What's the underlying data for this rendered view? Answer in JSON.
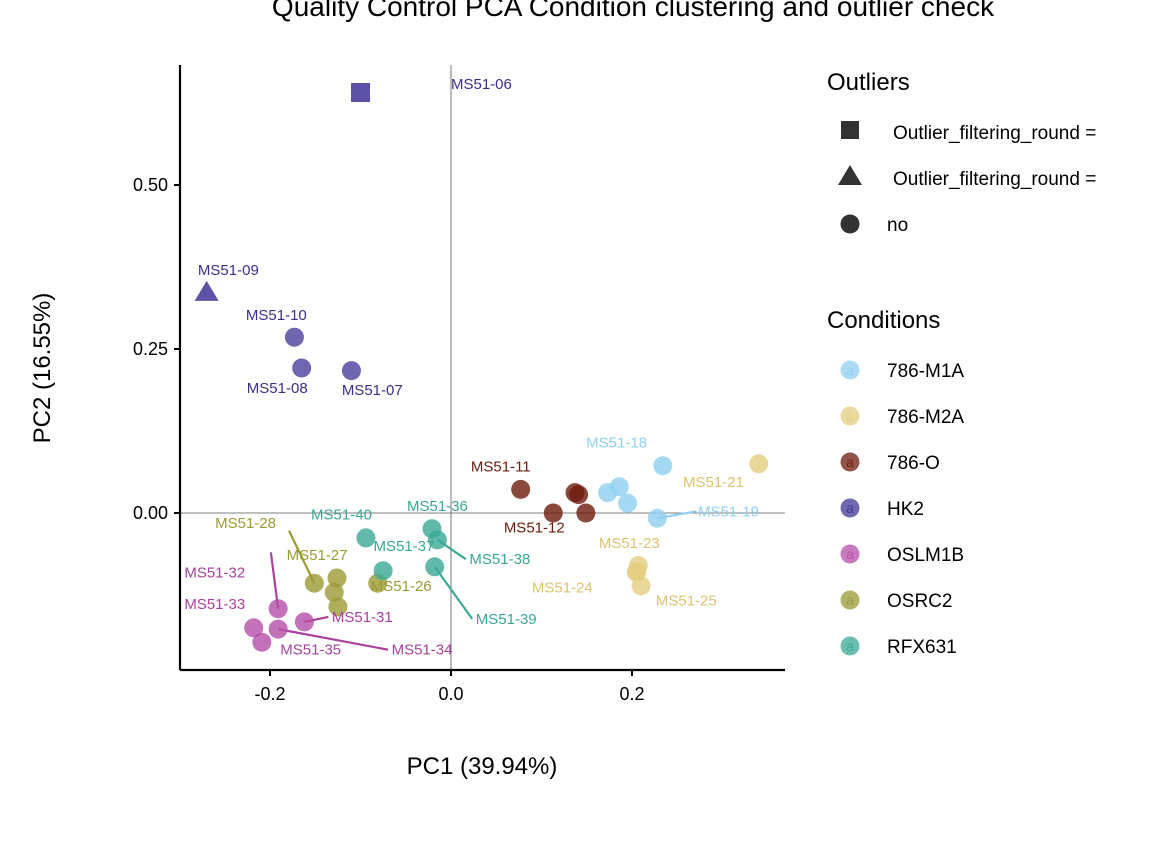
{
  "chart_data": {
    "type": "scatter",
    "title": "Quality Control PCA Condition clustering and outlier check",
    "xlabel": "PC1 (39.94%)",
    "ylabel": "PC2 (16.55%)",
    "xlim": [
      -0.3,
      0.37
    ],
    "ylim": [
      -0.24,
      0.68
    ],
    "xticks": [
      -0.2,
      0.0,
      0.2
    ],
    "xtick_labels": [
      "-0.2",
      "0.0",
      "0.2"
    ],
    "yticks": [
      0.0,
      0.25,
      0.5
    ],
    "ytick_labels": [
      "0.00",
      "0.25",
      "0.50"
    ],
    "reference_lines": {
      "x": 0,
      "y": 0
    },
    "grid": false,
    "legend_placement": "right",
    "legends": [
      {
        "title": "Outliers",
        "items": [
          {
            "label": "Outlier_filtering_round = ",
            "shape": "square"
          },
          {
            "label": "Outlier_filtering_round = ",
            "shape": "triangle"
          },
          {
            "label": "no",
            "shape": "circle"
          }
        ]
      },
      {
        "title": "Conditions",
        "items": [
          {
            "label": "786-M1A",
            "color": "#8fd0f0"
          },
          {
            "label": "786-M2A",
            "color": "#e3cd80"
          },
          {
            "label": "786-O",
            "color": "#6e1a0c"
          },
          {
            "label": "HK2",
            "color": "#3f3594"
          },
          {
            "label": "OSLM1B",
            "color": "#b44ea8"
          },
          {
            "label": "OSRC2",
            "color": "#9a9a35"
          },
          {
            "label": "RFX631",
            "color": "#3aa895"
          }
        ]
      }
    ],
    "series": [
      {
        "name": "HK2",
        "color": "#4b3f9e",
        "label_color": "#3a2f8a",
        "points": [
          {
            "id": "MS51-06",
            "x": -0.1,
            "y": 0.641,
            "shape": "square",
            "lx": 0.0,
            "ly": 0.646,
            "anchor": "start",
            "leader": false
          },
          {
            "id": "MS51-07",
            "x": -0.11,
            "y": 0.217,
            "shape": "circle",
            "lx": -0.087,
            "ly": 0.18,
            "anchor": "middle",
            "leader": false
          },
          {
            "id": "MS51-08",
            "x": -0.165,
            "y": 0.221,
            "shape": "circle",
            "lx": -0.192,
            "ly": 0.183,
            "anchor": "middle",
            "leader": false
          },
          {
            "id": "MS51-09",
            "x": -0.27,
            "y": 0.337,
            "shape": "triangle",
            "lx": -0.246,
            "ly": 0.363,
            "anchor": "middle",
            "leader": false
          },
          {
            "id": "MS51-10",
            "x": -0.173,
            "y": 0.268,
            "shape": "circle",
            "lx": -0.193,
            "ly": 0.294,
            "anchor": "middle",
            "leader": false
          }
        ]
      },
      {
        "name": "786-O",
        "color": "#6e1a0c",
        "label_color": "#6e1a0c",
        "points": [
          {
            "id": "MS51-11",
            "x": 0.077,
            "y": 0.036,
            "shape": "circle",
            "lx": 0.055,
            "ly": 0.063,
            "anchor": "middle",
            "leader": false
          },
          {
            "id": "MS51-12",
            "x": 0.113,
            "y": 0.0,
            "shape": "circle",
            "lx": 0.092,
            "ly": -0.03,
            "anchor": "middle",
            "leader": false
          },
          {
            "id": "MS51-13",
            "x": 0.137,
            "y": 0.031,
            "shape": "circle",
            "label": false
          },
          {
            "id": "MS51-14",
            "x": 0.141,
            "y": 0.028,
            "shape": "circle",
            "label": false
          },
          {
            "id": "MS51-15",
            "x": 0.149,
            "y": 0.0,
            "shape": "circle",
            "label": false
          }
        ]
      },
      {
        "name": "786-M1A",
        "color": "#8fd0f0",
        "label_color": "#8fd0f0",
        "points": [
          {
            "id": "MS51-16",
            "x": 0.173,
            "y": 0.031,
            "shape": "circle",
            "label": false
          },
          {
            "id": "MS51-17",
            "x": 0.186,
            "y": 0.04,
            "shape": "circle",
            "label": false
          },
          {
            "id": "MS51-18",
            "x": 0.234,
            "y": 0.072,
            "shape": "circle",
            "lx": 0.183,
            "ly": 0.1,
            "anchor": "middle",
            "leader": false
          },
          {
            "id": "MS51-19",
            "x": 0.228,
            "y": -0.008,
            "shape": "circle",
            "lx": 0.273,
            "ly": -0.005,
            "anchor": "start",
            "leader": true
          },
          {
            "id": "MS51-20",
            "x": 0.195,
            "y": 0.015,
            "shape": "circle",
            "label": false
          }
        ]
      },
      {
        "name": "786-M2A",
        "color": "#e3cd80",
        "label_color": "#dcc270",
        "points": [
          {
            "id": "MS51-21",
            "x": 0.34,
            "y": 0.075,
            "shape": "circle",
            "lx": 0.29,
            "ly": 0.04,
            "anchor": "middle",
            "leader": false
          },
          {
            "id": "MS51-22",
            "x": 0.205,
            "y": -0.09,
            "shape": "circle",
            "label": false
          },
          {
            "id": "MS51-23",
            "x": 0.207,
            "y": -0.08,
            "shape": "circle",
            "lx": 0.197,
            "ly": -0.053,
            "anchor": "middle",
            "leader": false
          },
          {
            "id": "MS51-24",
            "x": 0.205,
            "y": -0.09,
            "shape": "circle",
            "lx": 0.123,
            "ly": -0.121,
            "anchor": "middle",
            "leader": false
          },
          {
            "id": "MS51-25",
            "x": 0.21,
            "y": -0.111,
            "shape": "circle",
            "lx": 0.26,
            "ly": -0.141,
            "anchor": "middle",
            "leader": false
          }
        ]
      },
      {
        "name": "OSRC2",
        "color": "#9a9a35",
        "label_color": "#9a9a35",
        "points": [
          {
            "id": "MS51-26",
            "x": -0.081,
            "y": -0.107,
            "shape": "circle",
            "lx": -0.055,
            "ly": -0.119,
            "anchor": "middle",
            "leader": false
          },
          {
            "id": "MS51-27",
            "x": -0.126,
            "y": -0.099,
            "shape": "circle",
            "lx": -0.148,
            "ly": -0.072,
            "anchor": "middle",
            "leader": false
          },
          {
            "id": "MS51-28",
            "x": -0.151,
            "y": -0.107,
            "shape": "circle",
            "lx": -0.227,
            "ly": -0.023,
            "anchor": "middle",
            "leader": true,
            "leader_to": [
              -0.179,
              -0.027
            ]
          },
          {
            "id": "MS51-29",
            "x": -0.129,
            "y": -0.121,
            "shape": "circle",
            "label": false
          },
          {
            "id": "MS51-30",
            "x": -0.125,
            "y": -0.143,
            "shape": "circle",
            "label": false
          }
        ]
      },
      {
        "name": "OSLM1B",
        "color": "#b44ea8",
        "label_color": "#a8429c",
        "points": [
          {
            "id": "MS51-31",
            "x": -0.162,
            "y": -0.166,
            "shape": "circle",
            "lx": -0.098,
            "ly": -0.166,
            "anchor": "middle",
            "leader": true
          },
          {
            "id": "MS51-32",
            "x": -0.191,
            "y": -0.146,
            "shape": "circle",
            "lx": -0.261,
            "ly": -0.098,
            "anchor": "middle",
            "leader": true,
            "leader_to": [
              -0.199,
              -0.06
            ]
          },
          {
            "id": "MS51-33",
            "x": -0.218,
            "y": -0.175,
            "shape": "circle",
            "lx": -0.261,
            "ly": -0.146,
            "anchor": "middle",
            "leader": false
          },
          {
            "id": "MS51-34",
            "x": -0.191,
            "y": -0.177,
            "shape": "circle",
            "lx": -0.032,
            "ly": -0.216,
            "anchor": "middle",
            "leader": true
          },
          {
            "id": "MS51-35",
            "x": -0.209,
            "y": -0.197,
            "shape": "circle",
            "lx": -0.155,
            "ly": -0.216,
            "anchor": "middle",
            "leader": false
          }
        ]
      },
      {
        "name": "RFX631",
        "color": "#3aa895",
        "label_color": "#3aa895",
        "points": [
          {
            "id": "MS51-36",
            "x": -0.021,
            "y": -0.024,
            "shape": "circle",
            "lx": -0.015,
            "ly": 0.003,
            "anchor": "middle",
            "leader": false
          },
          {
            "id": "MS51-37",
            "x": -0.075,
            "y": -0.088,
            "shape": "circle",
            "lx": -0.052,
            "ly": -0.058,
            "anchor": "middle",
            "leader": false
          },
          {
            "id": "MS51-38",
            "x": -0.015,
            "y": -0.041,
            "shape": "circle",
            "lx": 0.054,
            "ly": -0.078,
            "anchor": "middle",
            "leader": true
          },
          {
            "id": "MS51-39",
            "x": -0.018,
            "y": -0.082,
            "shape": "circle",
            "lx": 0.061,
            "ly": -0.169,
            "anchor": "middle",
            "leader": true
          },
          {
            "id": "MS51-40",
            "x": -0.094,
            "y": -0.038,
            "shape": "circle",
            "lx": -0.121,
            "ly": -0.01,
            "anchor": "middle",
            "leader": false
          }
        ]
      }
    ]
  }
}
